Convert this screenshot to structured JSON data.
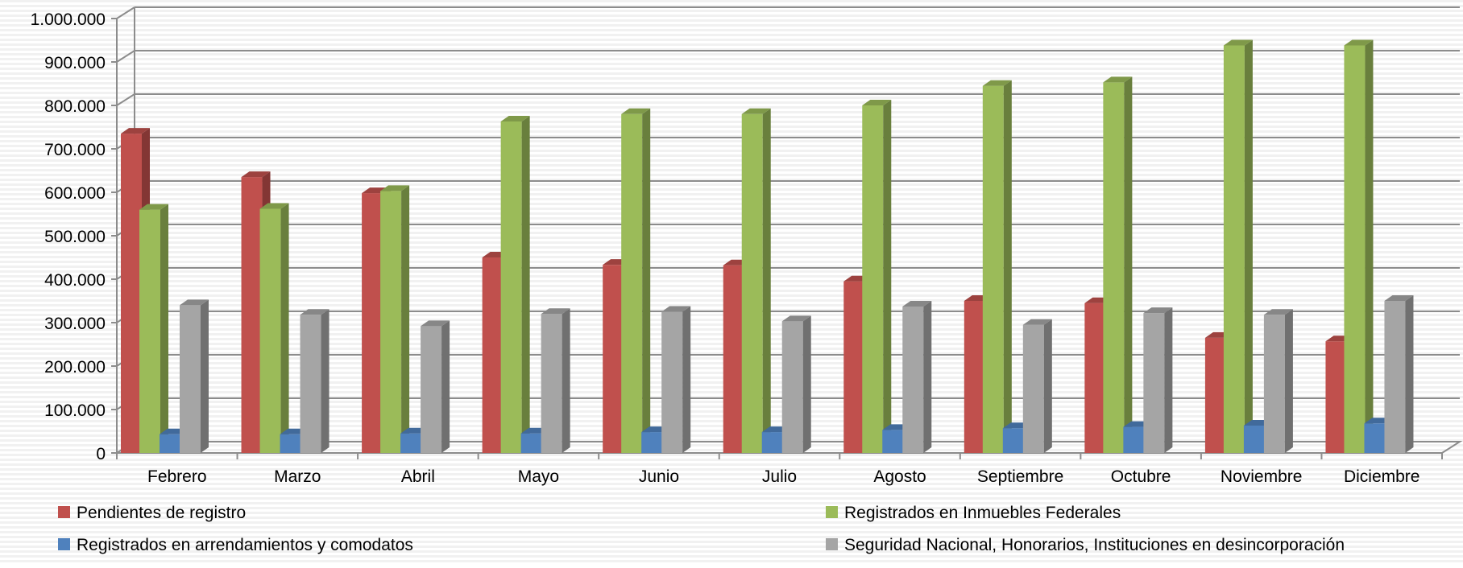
{
  "chart_data": {
    "type": "bar",
    "categories": [
      "Febrero",
      "Marzo",
      "Abril",
      "Mayo",
      "Junio",
      "Julio",
      "Agosto",
      "Septiembre",
      "Octubre",
      "Noviembre",
      "Diciembre"
    ],
    "series": [
      {
        "name": "Pendientes de registro",
        "color": "#c0504d",
        "values": [
          735000,
          635000,
          598000,
          450000,
          433000,
          432000,
          395000,
          350000,
          345000,
          265000,
          257000
        ]
      },
      {
        "name": "Registrados en Inmuebles Federales",
        "color": "#9bbb59",
        "values": [
          560000,
          562000,
          603000,
          763000,
          780000,
          780000,
          800000,
          845000,
          853000,
          938000,
          938000
        ]
      },
      {
        "name": "Registrados en arrendamientos y comodatos",
        "color": "#4f81bd",
        "values": [
          43000,
          43000,
          45000,
          45000,
          48000,
          48000,
          53000,
          57000,
          60000,
          63000,
          68000
        ]
      },
      {
        "name": "Seguridad Nacional, Honorarios, Instituciones en desincorporación",
        "color": "#a5a5a5",
        "values": [
          340000,
          318000,
          292000,
          320000,
          325000,
          303000,
          337000,
          295000,
          322000,
          318000,
          350000
        ]
      }
    ],
    "yticks": [
      "0",
      "100.000",
      "200.000",
      "300.000",
      "400.000",
      "500.000",
      "600.000",
      "700.000",
      "800.000",
      "900.000",
      "1.000.000"
    ],
    "ylim": [
      0,
      1000000
    ],
    "title": "",
    "xlabel": "",
    "ylabel": "",
    "grid": true,
    "legend_position": "bottom"
  }
}
